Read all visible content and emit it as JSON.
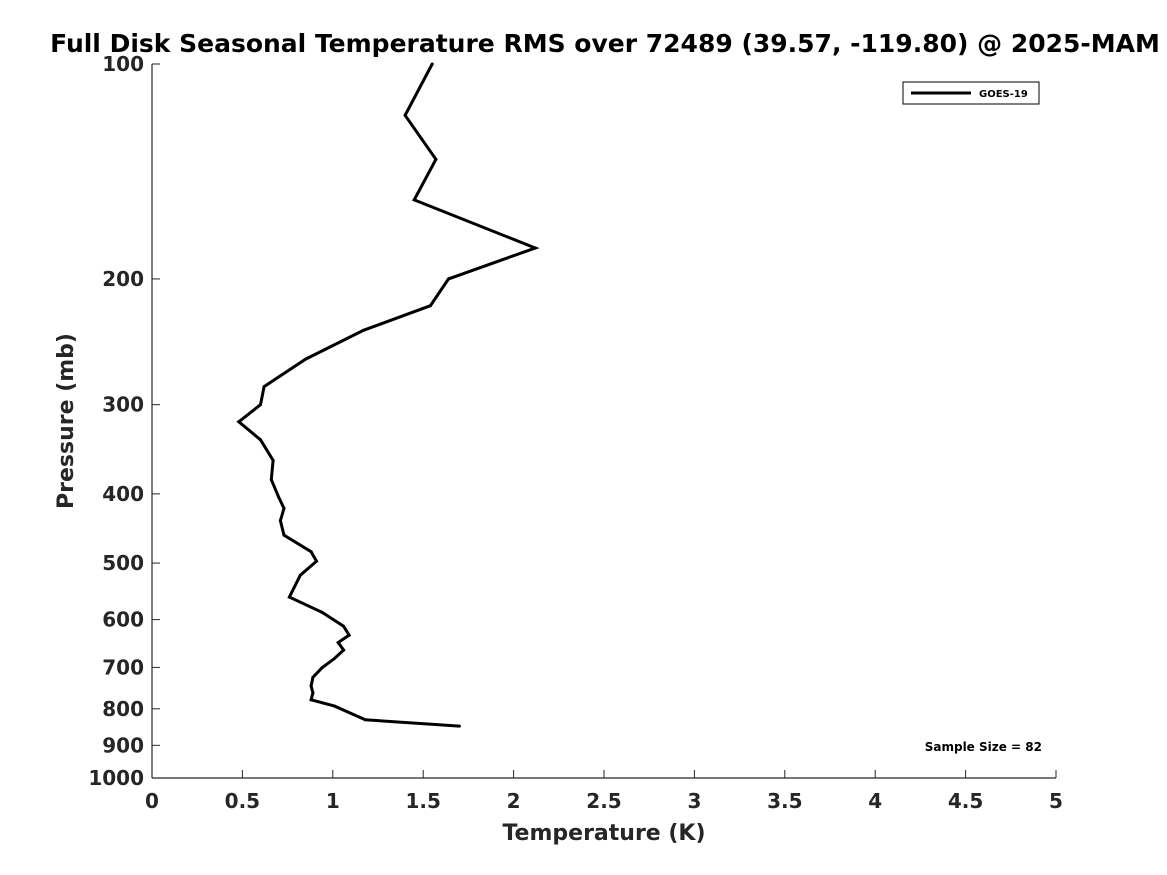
{
  "chart_data": {
    "type": "line",
    "title": "Full Disk Seasonal Temperature RMS over 72489 (39.57, -119.80) @ 2025-MAM",
    "xlabel": "Temperature (K)",
    "ylabel": "Pressure (mb)",
    "xlim": [
      0,
      5
    ],
    "ylim": [
      100,
      1000
    ],
    "y_scale": "log",
    "y_reversed": true,
    "x_ticks": [
      "0",
      "0.5",
      "1",
      "1.5",
      "2",
      "2.5",
      "3",
      "3.5",
      "4",
      "4.5",
      "5"
    ],
    "y_ticks": [
      "100",
      "200",
      "300",
      "400",
      "500",
      "600",
      "700",
      "800",
      "900",
      "1000"
    ],
    "legend_position": "top-right",
    "grid": false,
    "annotation": "Sample Size = 82",
    "series": [
      {
        "name": "GOES-19",
        "color": "#000000",
        "points": [
          {
            "x": 1.55,
            "y": 100
          },
          {
            "x": 1.4,
            "y": 118
          },
          {
            "x": 1.57,
            "y": 136
          },
          {
            "x": 1.45,
            "y": 155
          },
          {
            "x": 2.12,
            "y": 181
          },
          {
            "x": 1.64,
            "y": 200
          },
          {
            "x": 1.54,
            "y": 218
          },
          {
            "x": 1.17,
            "y": 236
          },
          {
            "x": 0.85,
            "y": 259
          },
          {
            "x": 0.62,
            "y": 283
          },
          {
            "x": 0.6,
            "y": 300
          },
          {
            "x": 0.48,
            "y": 317
          },
          {
            "x": 0.6,
            "y": 336
          },
          {
            "x": 0.67,
            "y": 359
          },
          {
            "x": 0.66,
            "y": 382
          },
          {
            "x": 0.7,
            "y": 404
          },
          {
            "x": 0.73,
            "y": 419
          },
          {
            "x": 0.71,
            "y": 436
          },
          {
            "x": 0.73,
            "y": 457
          },
          {
            "x": 0.88,
            "y": 482
          },
          {
            "x": 0.91,
            "y": 497
          },
          {
            "x": 0.82,
            "y": 520
          },
          {
            "x": 0.76,
            "y": 558
          },
          {
            "x": 0.94,
            "y": 586
          },
          {
            "x": 1.06,
            "y": 613
          },
          {
            "x": 1.09,
            "y": 631
          },
          {
            "x": 1.03,
            "y": 646
          },
          {
            "x": 1.06,
            "y": 662
          },
          {
            "x": 1.01,
            "y": 680
          },
          {
            "x": 0.94,
            "y": 701
          },
          {
            "x": 0.89,
            "y": 723
          },
          {
            "x": 0.88,
            "y": 743
          },
          {
            "x": 0.89,
            "y": 760
          },
          {
            "x": 0.88,
            "y": 777
          },
          {
            "x": 1.01,
            "y": 793
          },
          {
            "x": 1.1,
            "y": 812
          },
          {
            "x": 1.18,
            "y": 829
          },
          {
            "x": 1.7,
            "y": 846
          }
        ]
      }
    ]
  }
}
